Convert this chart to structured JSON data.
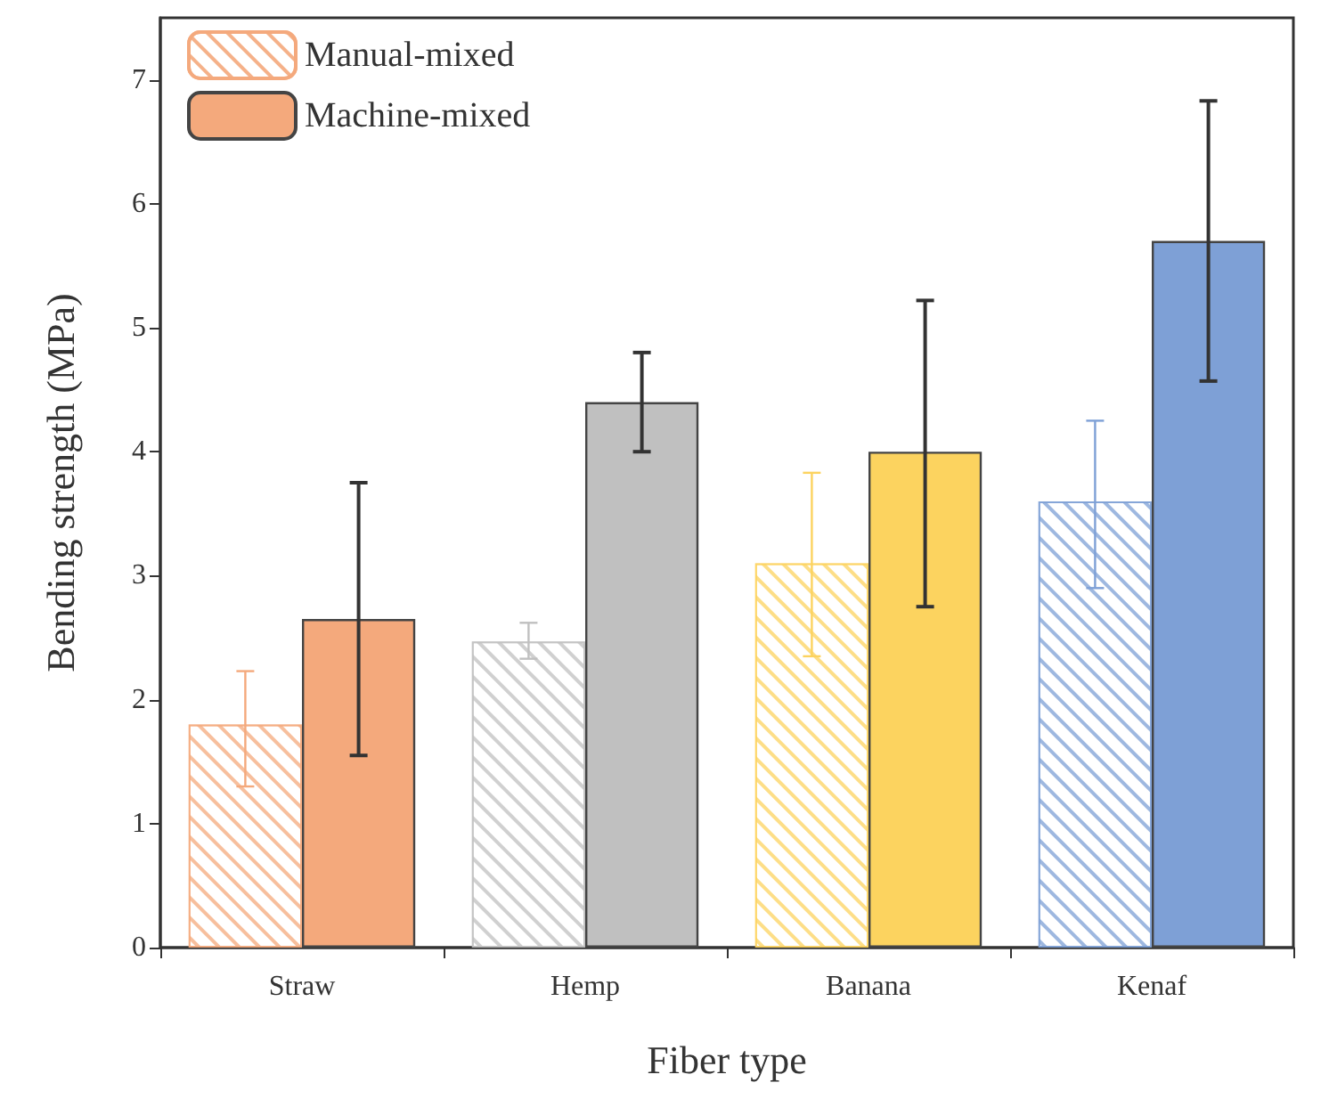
{
  "chart_data": {
    "type": "bar",
    "xlabel": "Fiber type",
    "ylabel": "Bending strength (MPa)",
    "categories": [
      "Straw",
      "Hemp",
      "Banana",
      "Kenaf"
    ],
    "series": [
      {
        "name": "Manual-mixed",
        "color": "#f4a97c",
        "colors": [
          "#f4a97c",
          "#c0c0c0",
          "#fcd35f",
          "#7ea0d6"
        ],
        "values": [
          1.8,
          2.47,
          3.1,
          3.6
        ],
        "errors": [
          [
            1.3,
            2.23
          ],
          [
            2.33,
            2.62
          ],
          [
            2.35,
            3.83
          ],
          [
            2.9,
            4.25
          ]
        ]
      },
      {
        "name": "Machine-mixed",
        "color": "#f4a97c",
        "colors": [
          "#f4a97c",
          "#c0c0c0",
          "#fcd35f",
          "#7ea0d6"
        ],
        "values": [
          2.65,
          4.4,
          4.0,
          5.7
        ],
        "errors": [
          [
            1.55,
            3.75
          ],
          [
            4.0,
            4.8
          ],
          [
            2.75,
            5.22
          ],
          [
            4.57,
            6.83
          ]
        ]
      }
    ],
    "ylim": [
      0,
      7.5
    ],
    "yticks": [
      0,
      1,
      2,
      3,
      4,
      5,
      6,
      7
    ],
    "grid": false,
    "legend": "top left"
  }
}
